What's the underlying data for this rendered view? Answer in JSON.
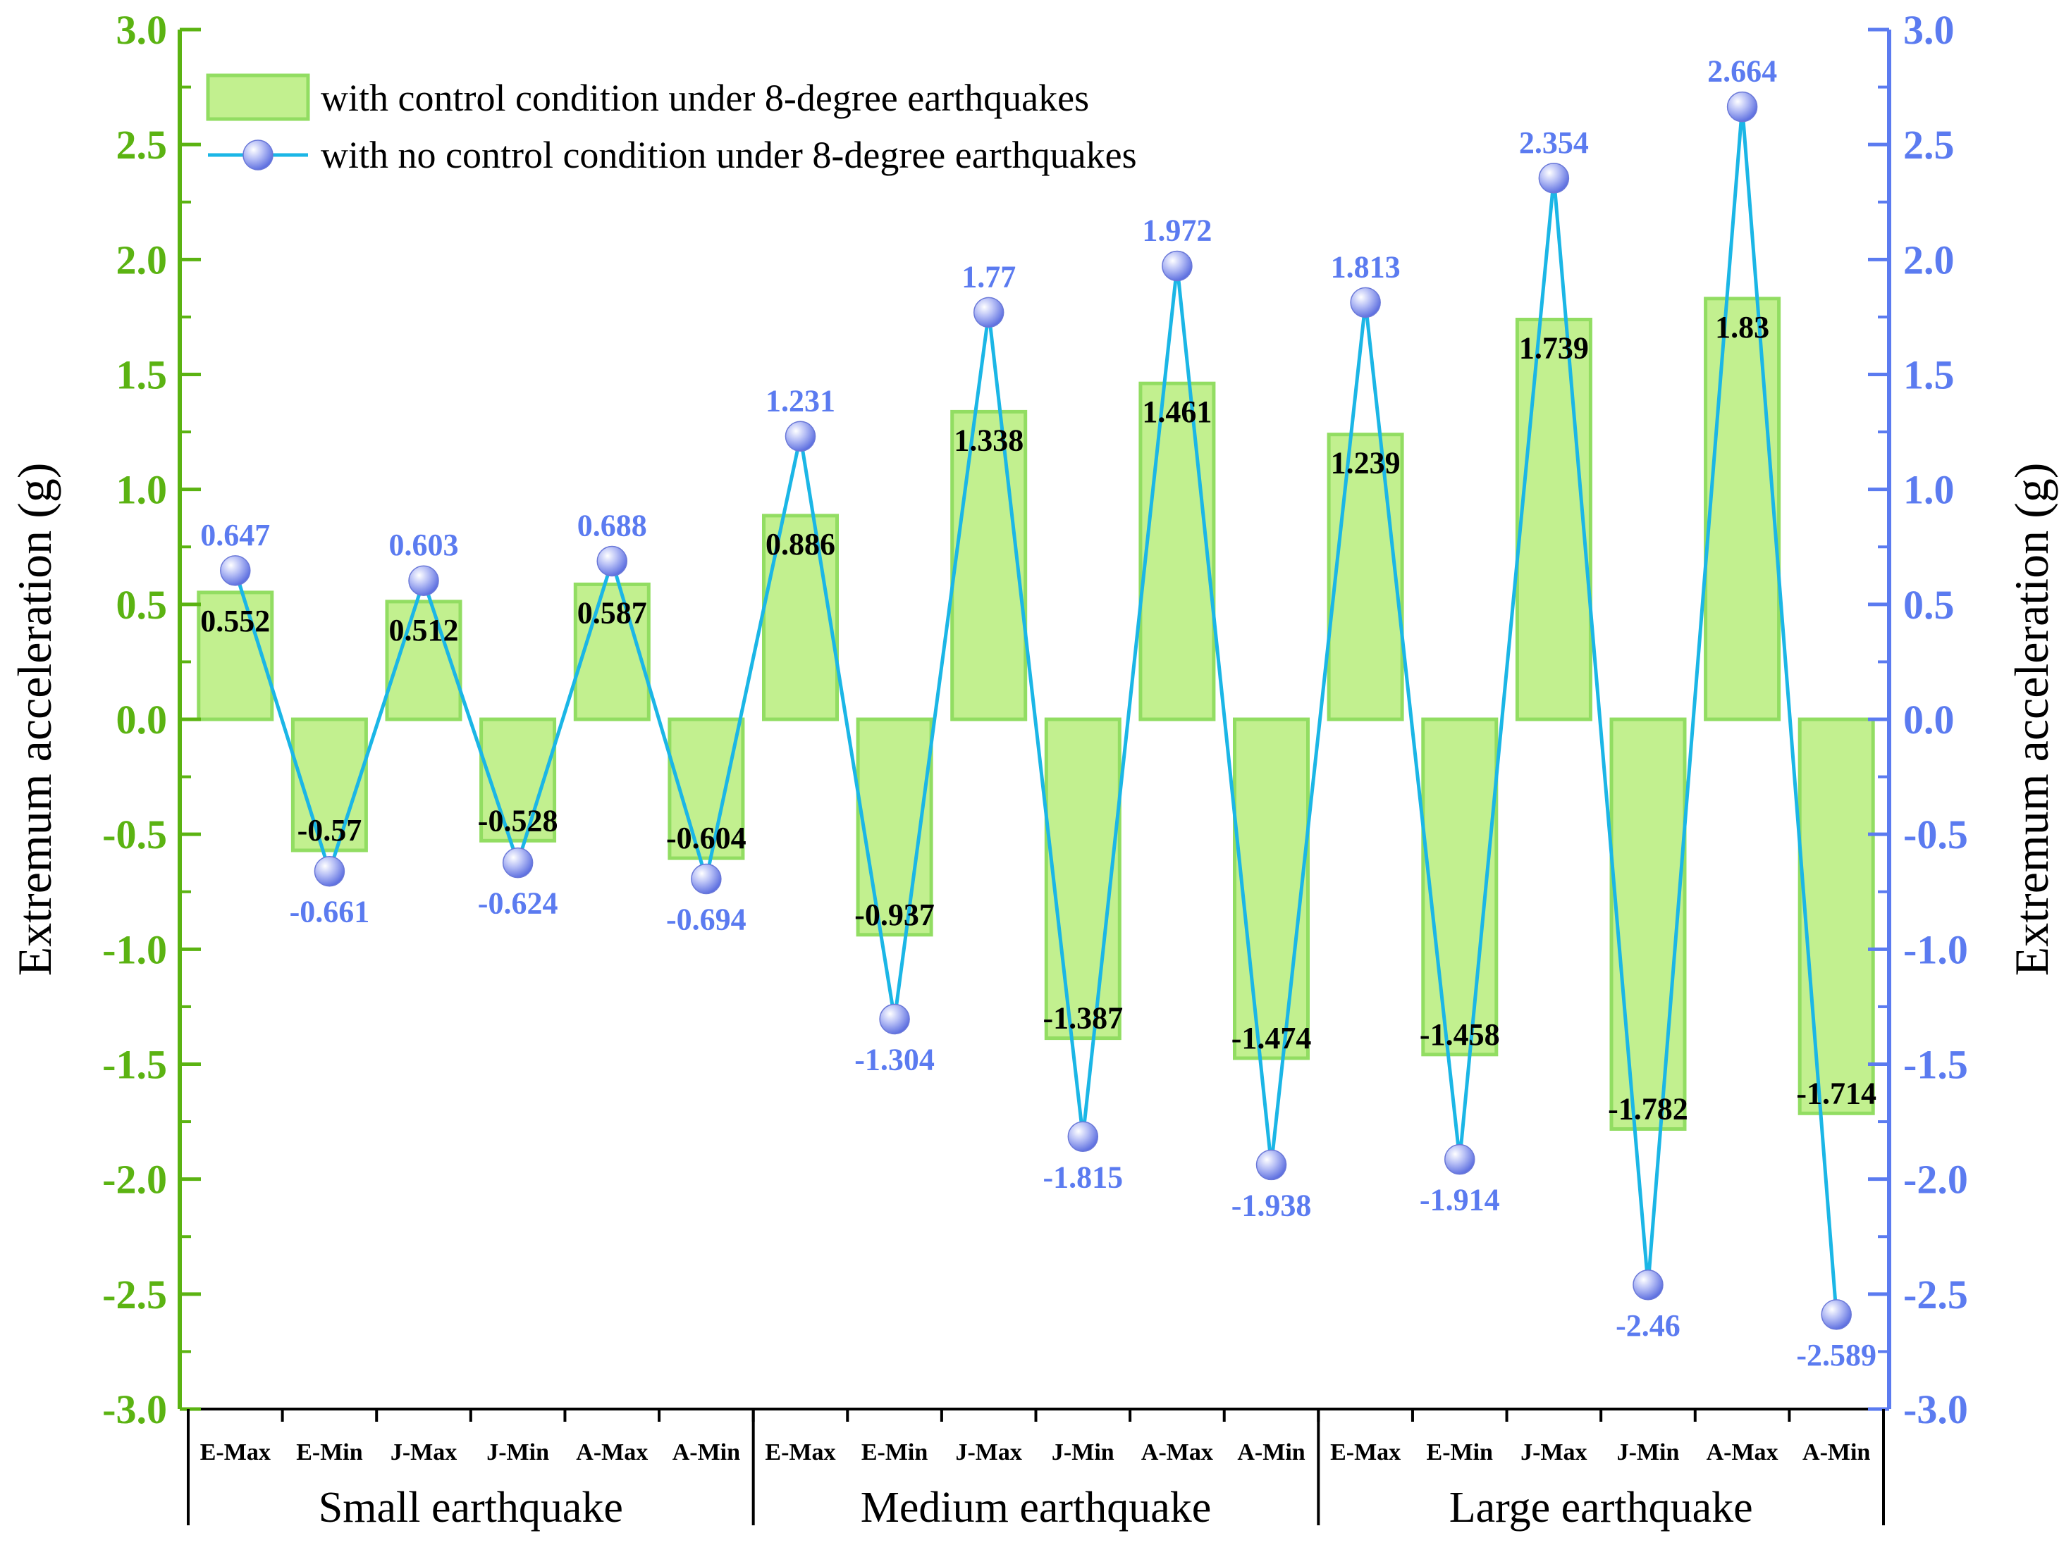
{
  "chart_data": {
    "type": "bar+line",
    "title": "",
    "ylabel_left": "Extremum acceleration (g)",
    "ylabel_right": "Extremum acceleration (g)",
    "ylim_left": [
      -3.0,
      3.0
    ],
    "ylim_right": [
      -3.0,
      3.0
    ],
    "yticks": [
      "3.0",
      "2.5",
      "2.0",
      "1.5",
      "1.0",
      "0.5",
      "0.0",
      "-0.5",
      "-1.0",
      "-1.5",
      "-2.0",
      "-2.5",
      "-3.0"
    ],
    "yticks_right": [
      "3.0",
      "2.5",
      "2.0",
      "1.5",
      "1.0",
      "0.5",
      "0.0",
      "-0.5",
      "-1.0",
      "-1.5",
      "-2.0",
      "-2.5",
      "-3.0"
    ],
    "categories": [
      "E-Max",
      "E-Min",
      "J-Max",
      "J-Min",
      "A-Max",
      "A-Min",
      "E-Max",
      "E-Min",
      "J-Max",
      "J-Min",
      "A-Max",
      "A-Min",
      "E-Max",
      "E-Min",
      "J-Max",
      "J-Min",
      "A-Max",
      "A-Min"
    ],
    "groups": [
      "Small earthquake",
      "Medium earthquake",
      "Large earthquake"
    ],
    "series": [
      {
        "name": "with control condition under 8-degree earthquakes",
        "kind": "bar",
        "axis": "left",
        "values": [
          0.552,
          -0.57,
          0.512,
          -0.528,
          0.587,
          -0.604,
          0.886,
          -0.937,
          1.338,
          -1.387,
          1.461,
          -1.474,
          1.239,
          -1.458,
          1.739,
          -1.782,
          1.83,
          -1.714
        ],
        "labels": [
          "0.552",
          "-0.57",
          "0.512",
          "-0.528",
          "0.587",
          "-0.604",
          "0.886",
          "-0.937",
          "1.338",
          "-1.387",
          "1.461",
          "-1.474",
          "1.239",
          "-1.458",
          "1.739",
          "-1.782",
          "1.83",
          "-1.714"
        ]
      },
      {
        "name": "with no control condition under 8-degree earthquakes",
        "kind": "line",
        "axis": "right",
        "values": [
          0.647,
          -0.661,
          0.603,
          -0.624,
          0.688,
          -0.694,
          1.231,
          -1.304,
          1.77,
          -1.815,
          1.972,
          -1.938,
          1.813,
          -1.914,
          2.354,
          -2.46,
          2.664,
          -2.589
        ],
        "labels": [
          "0.647",
          "-0.661",
          "0.603",
          "-0.624",
          "0.688",
          "-0.694",
          "1.231",
          "-1.304",
          "1.77",
          "-1.815",
          "1.972",
          "-1.938",
          "1.813",
          "-1.914",
          "2.354",
          "-2.46",
          "2.664",
          "-2.589"
        ]
      }
    ],
    "legend_position": "top-left",
    "colors": {
      "left_axis": "#5bb312",
      "right_axis": "#5b7bf0",
      "bar_fill": "#c2f08f",
      "bar_edge": "#92dd62",
      "line": "#1bb6e6",
      "marker": "#8f9bf0"
    }
  }
}
